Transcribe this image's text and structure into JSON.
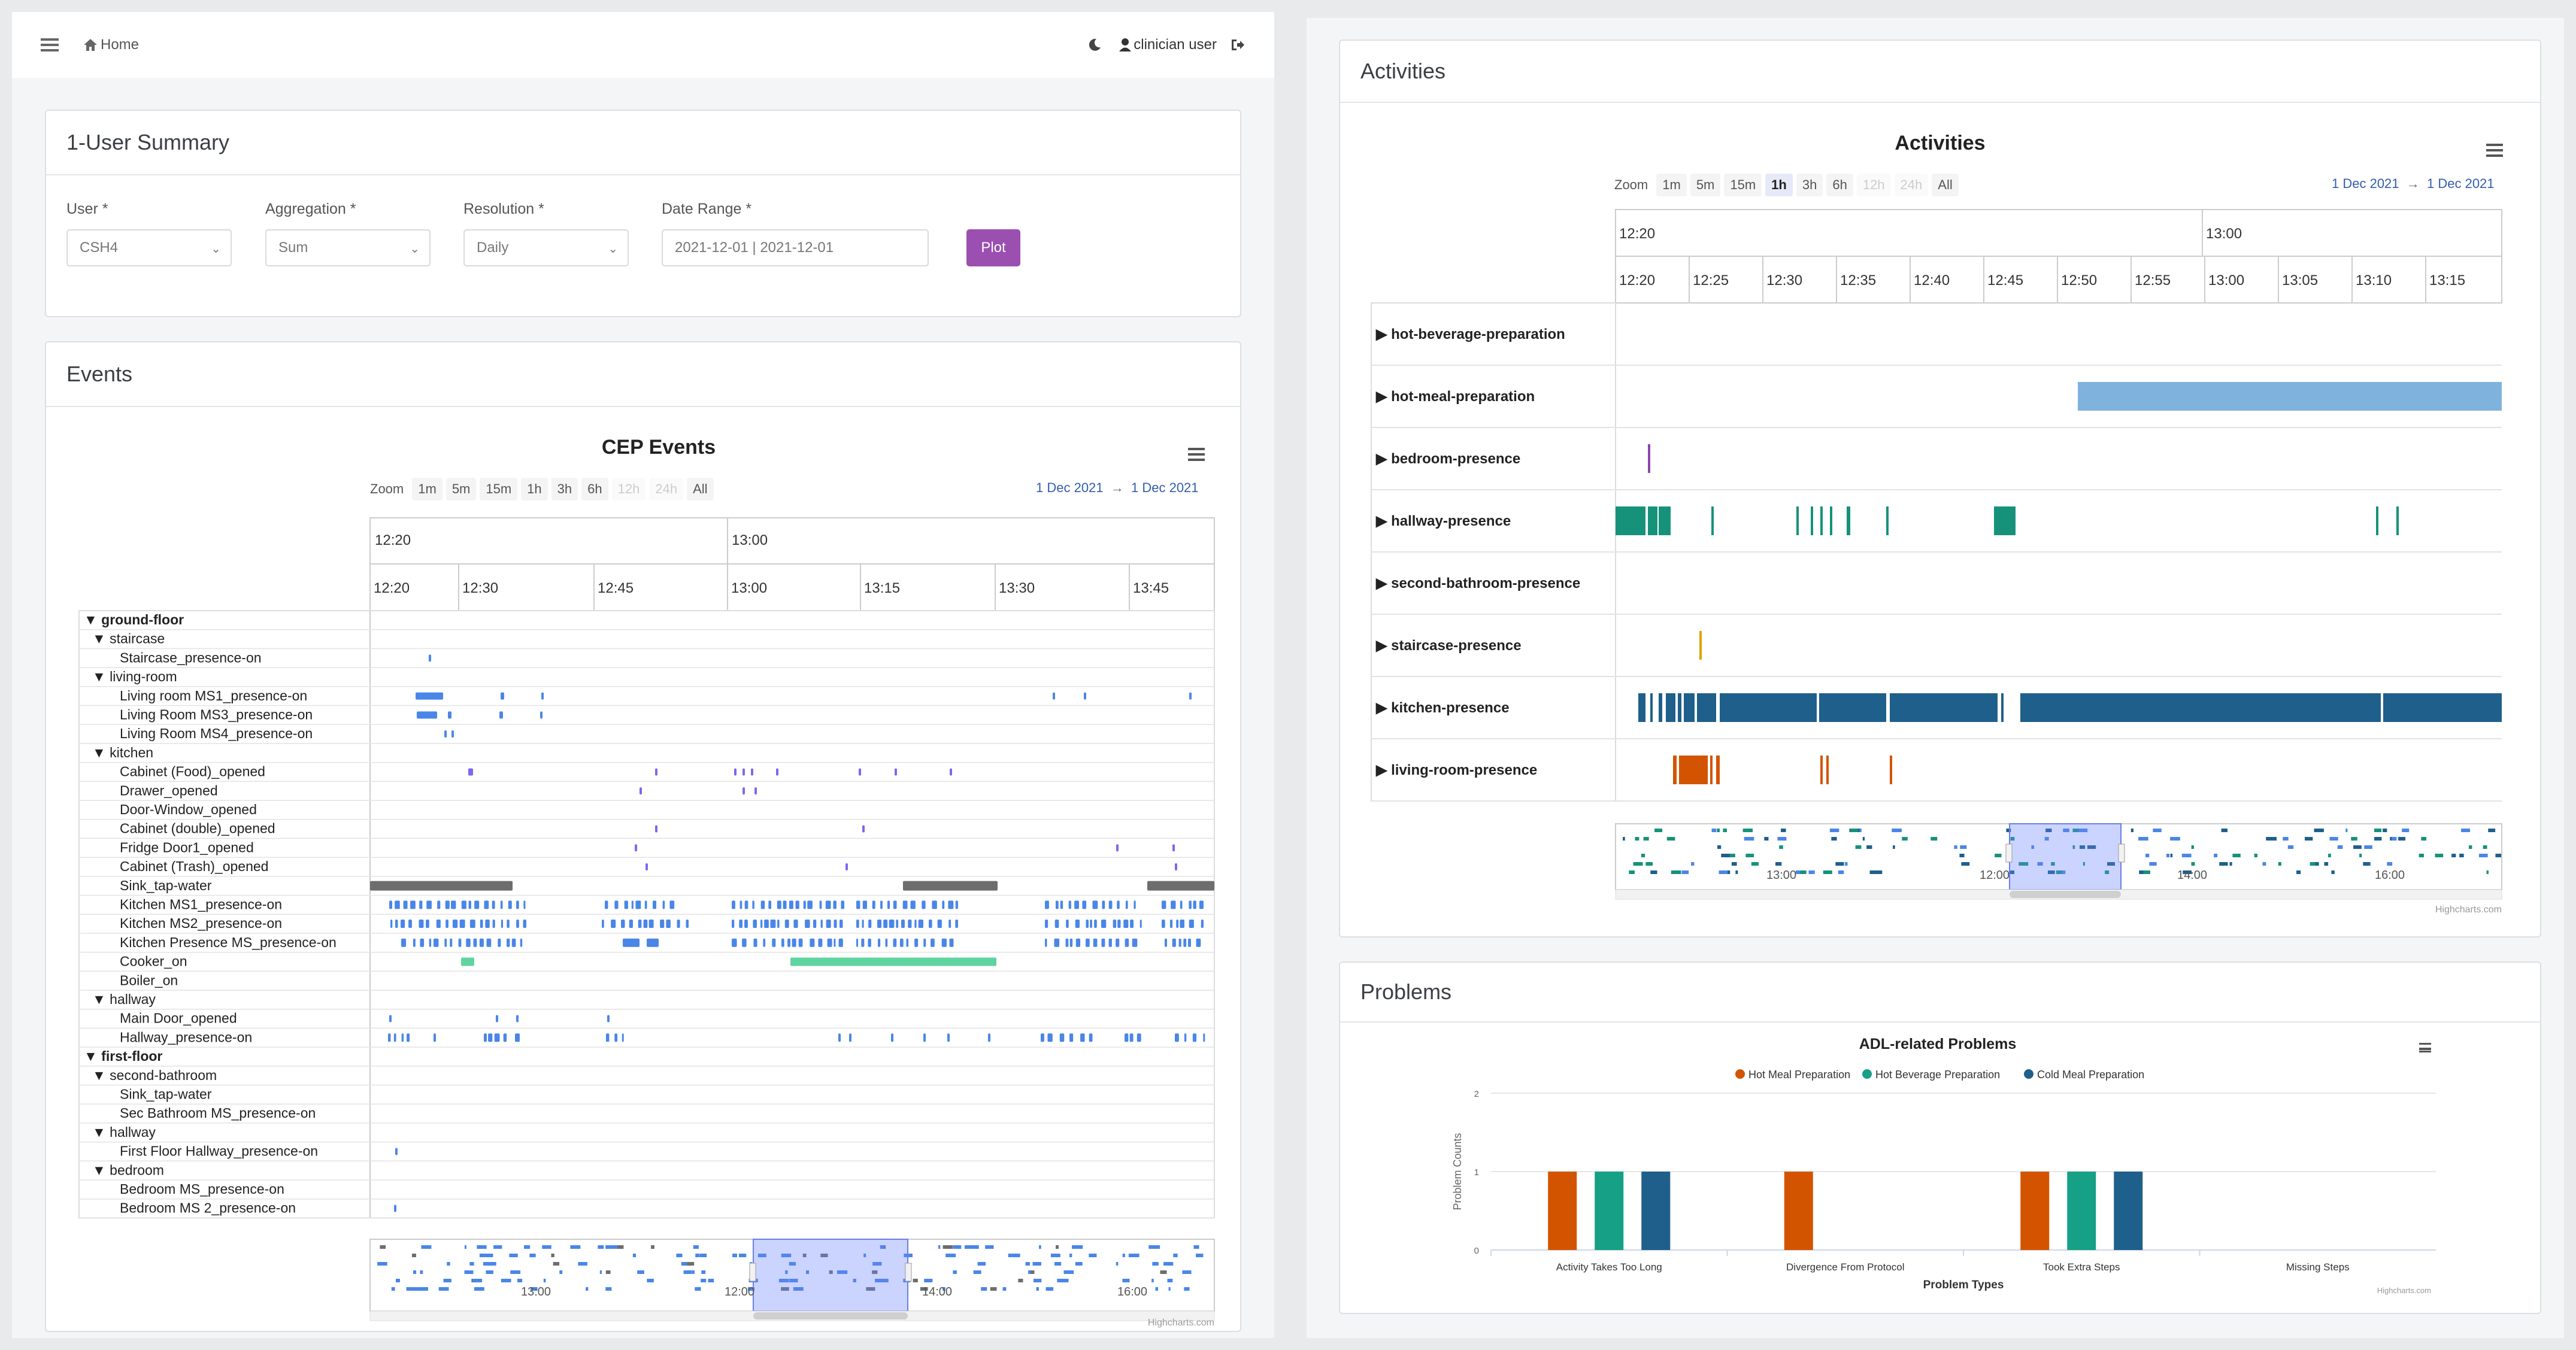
{
  "nav": {
    "home_label": "Home",
    "user_label": "clinician user"
  },
  "summary": {
    "title": "1-User Summary",
    "user_label": "User *",
    "user_value": "CSH4",
    "aggregation_label": "Aggregation *",
    "aggregation_value": "Sum",
    "resolution_label": "Resolution *",
    "resolution_value": "Daily",
    "daterange_label": "Date Range *",
    "daterange_value": "2021-12-01 | 2021-12-01",
    "plot_label": "Plot"
  },
  "events": {
    "card_title": "Events",
    "chart_title": "CEP Events",
    "zoom_label": "Zoom",
    "zoom_buttons": [
      "1m",
      "5m",
      "15m",
      "1h",
      "3h",
      "6h",
      "12h",
      "24h",
      "All"
    ],
    "date_from": "1 Dec 2021",
    "arrow": "→",
    "date_to": "1 Dec 2021",
    "top_ticks": [
      "12:20",
      "13:00"
    ],
    "ticks": [
      "12:20",
      "12:30",
      "12:45",
      "13:00",
      "13:15",
      "13:30",
      "13:45"
    ],
    "rows": [
      {
        "label": "▼ ground-floor",
        "level": 0
      },
      {
        "label": "▼ staircase",
        "level": 1
      },
      {
        "label": "Staircase_presence-on",
        "level": 2
      },
      {
        "label": "▼ living-room",
        "level": 1
      },
      {
        "label": "Living room MS1_presence-on",
        "level": 2
      },
      {
        "label": "Living Room MS3_presence-on",
        "level": 2
      },
      {
        "label": "Living Room MS4_presence-on",
        "level": 2
      },
      {
        "label": "▼ kitchen",
        "level": 1
      },
      {
        "label": "Cabinet (Food)_opened",
        "level": 2
      },
      {
        "label": "Drawer_opened",
        "level": 2
      },
      {
        "label": "Door-Window_opened",
        "level": 2
      },
      {
        "label": "Cabinet (double)_opened",
        "level": 2
      },
      {
        "label": "Fridge Door1_opened",
        "level": 2
      },
      {
        "label": "Cabinet (Trash)_opened",
        "level": 2
      },
      {
        "label": "Sink_tap-water",
        "level": 2
      },
      {
        "label": "Kitchen MS1_presence-on",
        "level": 2
      },
      {
        "label": "Kitchen MS2_presence-on",
        "level": 2
      },
      {
        "label": "Kitchen Presence MS_presence-on",
        "level": 2
      },
      {
        "label": "Cooker_on",
        "level": 2
      },
      {
        "label": "Boiler_on",
        "level": 2
      },
      {
        "label": "▼ hallway",
        "level": 1
      },
      {
        "label": "Main Door_opened",
        "level": 2
      },
      {
        "label": "Hallway_presence-on",
        "level": 2
      },
      {
        "label": "▼ first-floor",
        "level": 0
      },
      {
        "label": "▼ second-bathroom",
        "level": 1
      },
      {
        "label": "Sink_tap-water",
        "level": 2
      },
      {
        "label": "Sec Bathroom MS_presence-on",
        "level": 2
      },
      {
        "label": "▼ hallway",
        "level": 1
      },
      {
        "label": "First Floor Hallway_presence-on",
        "level": 2
      },
      {
        "label": "▼ bedroom",
        "level": 1
      },
      {
        "label": "Bedroom MS_presence-on",
        "level": 2
      },
      {
        "label": "Bedroom MS 2_presence-on",
        "level": 2
      }
    ],
    "navigator_ticks": [
      "13:00",
      "12:00",
      "14:00",
      "16:00"
    ],
    "credits": "Highcharts.com"
  },
  "activities": {
    "card_title": "Activities",
    "chart_title": "Activities",
    "zoom_label": "Zoom",
    "zoom_buttons": [
      "1m",
      "5m",
      "15m",
      "1h",
      "3h",
      "6h",
      "12h",
      "24h",
      "All"
    ],
    "date_from": "1 Dec 2021",
    "arrow": "→",
    "date_to": "1 Dec 2021",
    "top_ticks": [
      "12:20",
      "13:00"
    ],
    "ticks": [
      "12:20",
      "12:25",
      "12:30",
      "12:35",
      "12:40",
      "12:45",
      "12:50",
      "12:55",
      "13:00",
      "13:05",
      "13:10",
      "13:15"
    ],
    "rows": [
      "▶ hot-beverage-preparation",
      "▶ hot-meal-preparation",
      "▶ bedroom-presence",
      "▶ hallway-presence",
      "▶ second-bathroom-presence",
      "▶ staircase-presence",
      "▶ kitchen-presence",
      "▶ living-room-presence"
    ],
    "navigator_ticks": [
      "13:00",
      "12:00",
      "14:00",
      "16:00"
    ],
    "credits": "Highcharts.com"
  },
  "problems": {
    "card_title": "Problems",
    "credits": "Highcharts.com"
  },
  "chart_data": {
    "type": "bar",
    "title": "ADL-related Problems",
    "categories": [
      "Activity Takes Too Long",
      "Divergence From Protocol",
      "Took Extra Steps",
      "Missing Steps"
    ],
    "series": [
      {
        "name": "Hot Meal Preparation",
        "color": "#d35400",
        "values": [
          1,
          1,
          1,
          0
        ]
      },
      {
        "name": "Hot Beverage Preparation",
        "color": "#16a085",
        "values": [
          1,
          0,
          1,
          0
        ]
      },
      {
        "name": "Cold Meal Preparation",
        "color": "#1f5f8b",
        "values": [
          1,
          0,
          1,
          0
        ]
      }
    ],
    "xlabel": "Problem Types",
    "ylabel": "Problem Counts",
    "ylim": [
      0,
      2
    ],
    "yticks": [
      "0",
      "1",
      "2"
    ]
  }
}
